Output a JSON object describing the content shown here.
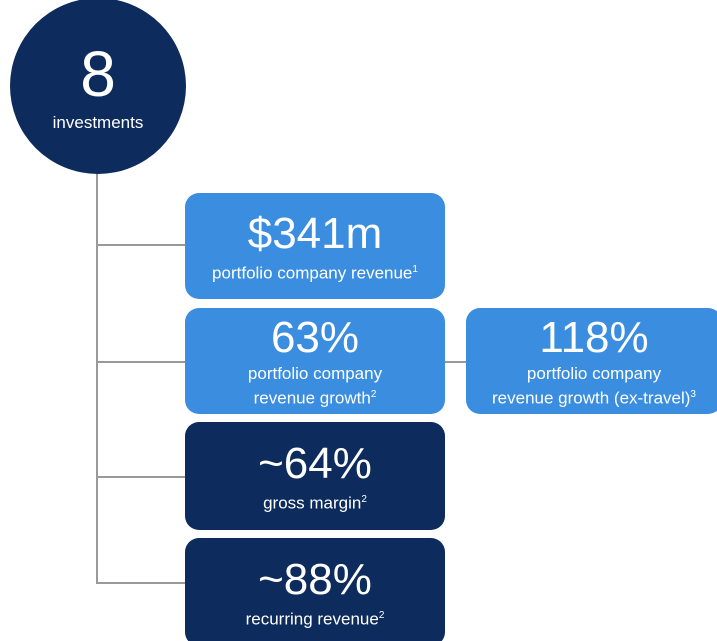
{
  "circle": {
    "value": "8",
    "label": "investments"
  },
  "nodes": [
    {
      "value": "$341m",
      "lines": [
        "portfolio company revenue"
      ],
      "footnote": "1"
    },
    {
      "value": "63%",
      "lines": [
        "portfolio company",
        "revenue growth"
      ],
      "footnote": "2"
    },
    {
      "value": "~64%",
      "lines": [
        "gross margin"
      ],
      "footnote": "2"
    },
    {
      "value": "~88%",
      "lines": [
        "recurring revenue"
      ],
      "footnote": "2"
    },
    {
      "value": "118%",
      "lines": [
        "portfolio company",
        "revenue growth (ex-travel)"
      ],
      "footnote": "3"
    }
  ]
}
